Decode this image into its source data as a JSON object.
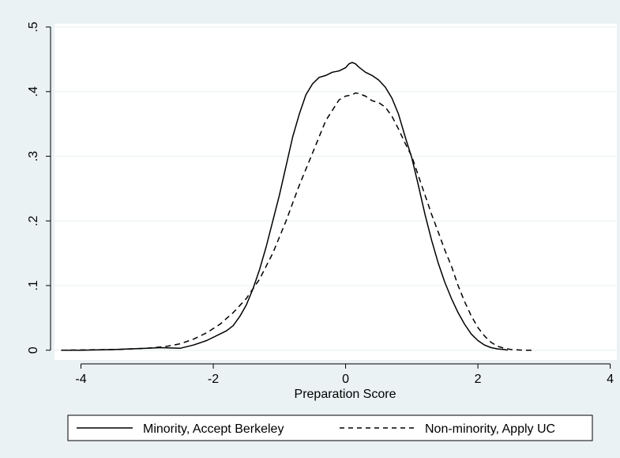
{
  "chart_data": {
    "type": "line",
    "title": "",
    "xlabel": "Preparation Score",
    "ylabel": "",
    "xlim": [
      -4.4,
      4.1
    ],
    "ylim": [
      -0.015,
      0.505
    ],
    "xticks": [
      -4,
      -2,
      0,
      2,
      4
    ],
    "xtick_labels": [
      "-4",
      "-2",
      "0",
      "2",
      "4"
    ],
    "yticks": [
      0,
      0.1,
      0.2,
      0.3,
      0.4,
      0.5
    ],
    "ytick_labels": [
      "0",
      ".1",
      ".2",
      ".3",
      ".4",
      ".5"
    ],
    "grid": "horizontal",
    "legend_position": "bottom",
    "colors": {
      "background": "#eaf2f3",
      "plot": "#ffffff",
      "grid": "#eaf2f3",
      "line": "#000000"
    },
    "series": [
      {
        "name": "Minority, Accept Berkeley",
        "style": "solid",
        "x": [
          -4.3,
          -4.0,
          -3.5,
          -3.0,
          -2.8,
          -2.5,
          -2.3,
          -2.1,
          -1.9,
          -1.8,
          -1.7,
          -1.6,
          -1.5,
          -1.4,
          -1.3,
          -1.2,
          -1.1,
          -1.0,
          -0.9,
          -0.8,
          -0.7,
          -0.6,
          -0.5,
          -0.4,
          -0.3,
          -0.2,
          -0.1,
          0.0,
          0.05,
          0.1,
          0.15,
          0.2,
          0.3,
          0.4,
          0.5,
          0.6,
          0.7,
          0.8,
          0.9,
          1.0,
          1.1,
          1.2,
          1.3,
          1.4,
          1.5,
          1.6,
          1.7,
          1.8,
          1.9,
          2.0,
          2.1,
          2.2,
          2.3,
          2.4,
          2.45
        ],
        "y": [
          0,
          0,
          0.001,
          0.003,
          0.004,
          0.003,
          0.008,
          0.015,
          0.025,
          0.03,
          0.038,
          0.052,
          0.07,
          0.095,
          0.125,
          0.16,
          0.2,
          0.24,
          0.285,
          0.33,
          0.365,
          0.395,
          0.412,
          0.422,
          0.425,
          0.43,
          0.432,
          0.437,
          0.443,
          0.445,
          0.443,
          0.438,
          0.43,
          0.425,
          0.418,
          0.407,
          0.39,
          0.365,
          0.33,
          0.298,
          0.255,
          0.21,
          0.17,
          0.135,
          0.105,
          0.08,
          0.058,
          0.04,
          0.025,
          0.015,
          0.008,
          0.004,
          0.002,
          0.001,
          0.0
        ]
      },
      {
        "name": "Non-minority, Apply UC",
        "style": "dashed",
        "x": [
          -4.3,
          -3.5,
          -3.0,
          -2.7,
          -2.5,
          -2.3,
          -2.1,
          -1.9,
          -1.7,
          -1.5,
          -1.3,
          -1.1,
          -0.9,
          -0.7,
          -0.5,
          -0.3,
          -0.1,
          0.0,
          0.1,
          0.15,
          0.2,
          0.3,
          0.4,
          0.5,
          0.6,
          0.7,
          0.8,
          0.9,
          1.0,
          1.1,
          1.2,
          1.3,
          1.4,
          1.5,
          1.6,
          1.7,
          1.8,
          1.9,
          2.0,
          2.1,
          2.2,
          2.3,
          2.4,
          2.5,
          2.7,
          2.85
        ],
        "y": [
          0,
          0.001,
          0.003,
          0.006,
          0.01,
          0.017,
          0.027,
          0.04,
          0.058,
          0.08,
          0.11,
          0.15,
          0.2,
          0.255,
          0.305,
          0.355,
          0.387,
          0.393,
          0.395,
          0.398,
          0.397,
          0.393,
          0.386,
          0.383,
          0.376,
          0.362,
          0.342,
          0.32,
          0.3,
          0.27,
          0.24,
          0.21,
          0.183,
          0.155,
          0.13,
          0.1,
          0.075,
          0.053,
          0.035,
          0.022,
          0.012,
          0.006,
          0.003,
          0.001,
          0.0,
          0.0
        ]
      }
    ]
  }
}
